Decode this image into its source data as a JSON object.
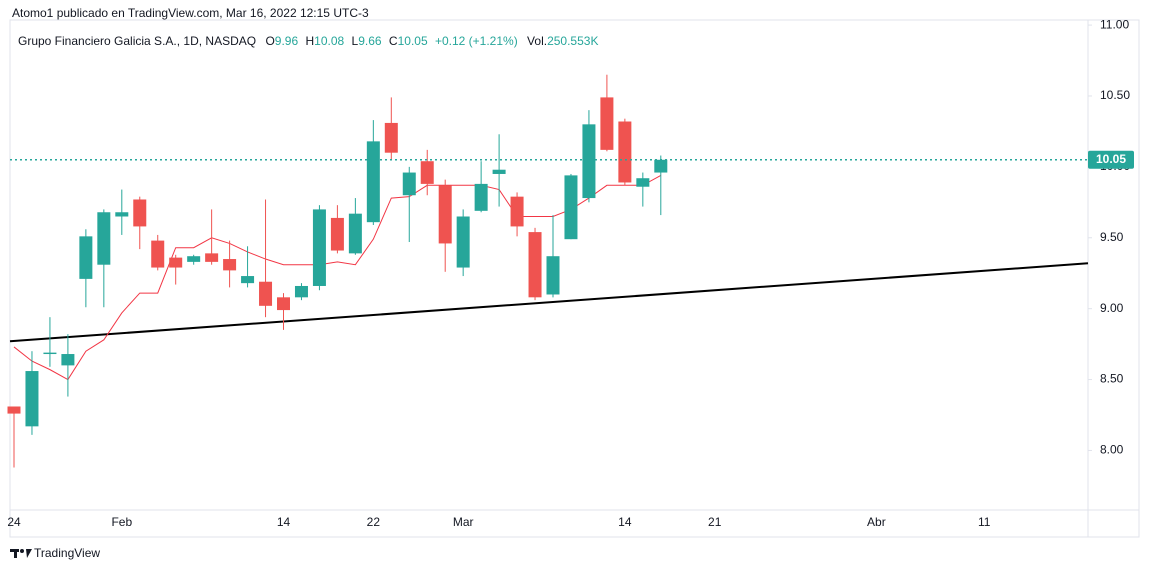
{
  "header": {
    "publisher": "Atomo1 publicado en TradingView.com, Mar 16, 2022 12:15 UTC-3"
  },
  "legend": {
    "symbol": "Grupo Financiero Galicia S.A., 1D, NASDAQ",
    "o_label": "O",
    "o_value": "9.96",
    "h_label": "H",
    "h_value": "10.08",
    "l_label": "L",
    "l_value": "9.66",
    "c_label": "C",
    "c_value": "10.05",
    "change": "+0.12 (+1.21%)",
    "vol_label": "Vol.",
    "vol_value": "250.553K"
  },
  "footer": {
    "brand": "TradingView"
  },
  "chart_data": {
    "type": "candlestick",
    "categories": [
      "24",
      null,
      null,
      null,
      null,
      null,
      "Feb",
      null,
      null,
      null,
      null,
      null,
      null,
      null,
      null,
      "14",
      null,
      null,
      null,
      null,
      "22",
      null,
      null,
      null,
      null,
      "Mar",
      null,
      null,
      null,
      null,
      null,
      null,
      null,
      null,
      "14",
      null,
      null,
      null,
      null,
      "21",
      null,
      null,
      null,
      null,
      null,
      null,
      null,
      null,
      "Abr",
      null,
      null,
      null,
      null,
      null,
      "11",
      null,
      null,
      null,
      null,
      null
    ],
    "open": [
      8.31,
      8.17,
      8.68,
      8.6,
      9.21,
      9.31,
      9.65,
      9.77,
      9.48,
      9.36,
      9.33,
      9.39,
      9.35,
      9.18,
      9.19,
      9.08,
      9.08,
      9.16,
      9.64,
      9.39,
      9.61,
      10.31,
      9.8,
      10.04,
      9.87,
      9.29,
      9.69,
      9.95,
      9.79,
      9.54,
      9.1,
      9.49,
      9.78,
      10.49,
      10.32,
      9.86,
      9.96,
      null,
      null,
      null,
      null,
      null,
      null,
      null,
      null,
      null,
      null,
      null,
      null,
      null,
      null,
      null,
      null,
      null,
      null,
      null,
      null,
      null,
      null,
      null
    ],
    "high": [
      8.31,
      8.7,
      8.94,
      8.82,
      9.56,
      9.7,
      9.84,
      9.79,
      9.52,
      9.38,
      9.38,
      9.7,
      9.48,
      9.44,
      9.77,
      9.11,
      9.18,
      9.73,
      9.73,
      9.78,
      10.33,
      10.49,
      10.0,
      10.12,
      9.91,
      9.7,
      10.04,
      10.23,
      9.82,
      9.57,
      9.66,
      9.95,
      10.4,
      10.65,
      10.34,
      9.96,
      10.08,
      null,
      null,
      null,
      null,
      null,
      null,
      null,
      null,
      null,
      null,
      null,
      null,
      null,
      null,
      null,
      null,
      null,
      null,
      null,
      null,
      null,
      null,
      null
    ],
    "low": [
      7.88,
      8.11,
      8.59,
      8.38,
      9.01,
      9.01,
      9.52,
      9.42,
      9.27,
      9.17,
      9.31,
      9.31,
      9.15,
      9.15,
      8.94,
      8.85,
      9.06,
      9.13,
      9.39,
      9.38,
      9.59,
      10.05,
      9.47,
      9.8,
      9.26,
      9.23,
      9.68,
      9.72,
      9.51,
      9.06,
      9.08,
      9.49,
      9.75,
      10.11,
      9.87,
      9.72,
      9.66,
      null,
      null,
      null,
      null,
      null,
      null,
      null,
      null,
      null,
      null,
      null,
      null,
      null,
      null,
      null,
      null,
      null,
      null,
      null,
      null,
      null,
      null,
      null
    ],
    "close": [
      8.26,
      8.56,
      8.69,
      8.68,
      9.51,
      9.68,
      9.68,
      9.58,
      9.29,
      9.29,
      9.37,
      9.33,
      9.27,
      9.23,
      9.02,
      8.99,
      9.16,
      9.7,
      9.41,
      9.67,
      10.18,
      10.1,
      9.96,
      9.88,
      9.46,
      9.65,
      9.88,
      9.98,
      9.58,
      9.08,
      9.37,
      9.94,
      10.3,
      10.12,
      9.89,
      9.92,
      10.05,
      null,
      null,
      null,
      null,
      null,
      null,
      null,
      null,
      null,
      null,
      null,
      null,
      null,
      null,
      null,
      null,
      null,
      null,
      null,
      null,
      null,
      null,
      null
    ],
    "up_color": "#26a69a",
    "down_color": "#ef5350",
    "moving_average": {
      "color": "#f23645",
      "values": [
        8.73,
        8.63,
        8.57,
        8.5,
        8.7,
        8.78,
        8.97,
        9.11,
        9.11,
        9.43,
        9.43,
        9.5,
        9.46,
        9.4,
        9.35,
        9.31,
        9.31,
        9.31,
        9.33,
        9.31,
        9.49,
        9.78,
        9.79,
        9.87,
        9.87,
        9.87,
        9.87,
        9.84,
        9.65,
        9.65,
        9.65,
        9.7,
        9.78,
        9.87,
        9.87,
        9.87,
        9.94,
        null,
        null,
        null,
        null,
        null,
        null,
        null,
        null,
        null,
        null,
        null,
        null,
        null,
        null,
        null,
        null,
        null,
        null,
        null,
        null,
        null,
        null,
        null
      ]
    },
    "trendline": {
      "color": "#000000",
      "values": [
        8.77,
        9.32
      ]
    },
    "last_price": 10.05,
    "last_price_color": "#26a69a",
    "ylim": [
      7.58,
      11.05
    ],
    "yticks": [
      {
        "value": 8,
        "label": "8.00"
      },
      {
        "value": 8.5,
        "label": "8.50"
      },
      {
        "value": 9,
        "label": "9.00"
      },
      {
        "value": 9.5,
        "label": "9.50"
      },
      {
        "value": 10,
        "label": "10.00"
      },
      {
        "value": 10.5,
        "label": "10.50"
      },
      {
        "value": 11,
        "label": "11.00"
      }
    ]
  }
}
